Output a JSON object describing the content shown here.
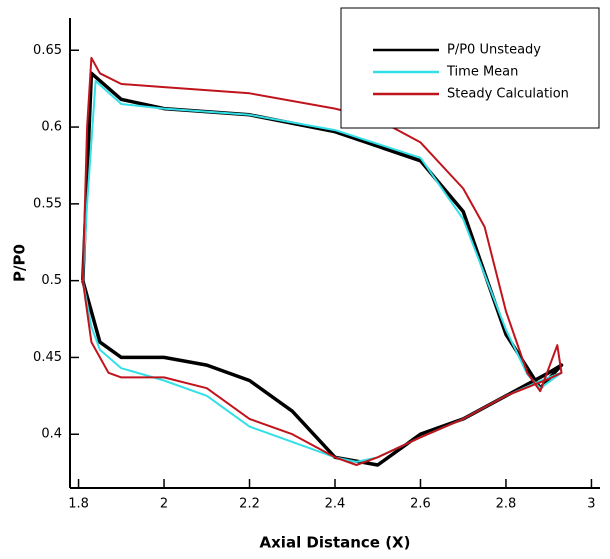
{
  "chart_data": {
    "type": "line",
    "xlabel": "Axial Distance (X)",
    "ylabel": "P/P0",
    "xlim": [
      1.78,
      3.02
    ],
    "ylim": [
      0.365,
      0.671
    ],
    "xticks": [
      1.8,
      2,
      2.2,
      2.4,
      2.6,
      2.8,
      3
    ],
    "yticks": [
      0.4,
      0.45,
      0.5,
      0.55,
      0.6,
      0.65
    ],
    "legend": "upper right",
    "series": [
      {
        "name": "P/P0 Unsteady",
        "color": "#000000",
        "x": [
          1.81,
          1.83,
          1.9,
          2.0,
          2.2,
          2.4,
          2.6,
          2.7,
          2.8,
          2.88,
          2.93,
          2.9,
          2.8,
          2.7,
          2.6,
          2.5,
          2.4,
          2.3,
          2.2,
          2.1,
          2.0,
          1.9,
          1.85,
          1.81
        ],
        "values": [
          0.5,
          0.635,
          0.618,
          0.612,
          0.608,
          0.597,
          0.578,
          0.545,
          0.465,
          0.43,
          0.445,
          0.44,
          0.425,
          0.41,
          0.4,
          0.38,
          0.385,
          0.415,
          0.435,
          0.445,
          0.45,
          0.45,
          0.46,
          0.5
        ]
      },
      {
        "name": "Time Mean",
        "color": "#33e0e8",
        "x": [
          1.81,
          1.82,
          1.84,
          1.9,
          2.0,
          2.2,
          2.4,
          2.6,
          2.7,
          2.8,
          2.85,
          2.88,
          2.93,
          2.9,
          2.8,
          2.7,
          2.6,
          2.5,
          2.45,
          2.4,
          2.3,
          2.2,
          2.1,
          2.0,
          1.9,
          1.85,
          1.83,
          1.81
        ],
        "values": [
          0.5,
          0.55,
          0.63,
          0.615,
          0.612,
          0.608,
          0.598,
          0.58,
          0.54,
          0.468,
          0.439,
          0.43,
          0.44,
          0.437,
          0.425,
          0.41,
          0.398,
          0.385,
          0.382,
          0.385,
          0.395,
          0.405,
          0.425,
          0.435,
          0.443,
          0.455,
          0.47,
          0.5
        ]
      },
      {
        "name": "Steady Calculation",
        "color": "#c0141c",
        "x": [
          1.81,
          1.82,
          1.83,
          1.85,
          1.9,
          2.0,
          2.2,
          2.4,
          2.5,
          2.6,
          2.7,
          2.75,
          2.8,
          2.85,
          2.88,
          2.92,
          2.93,
          2.9,
          2.8,
          2.7,
          2.6,
          2.5,
          2.45,
          2.4,
          2.3,
          2.2,
          2.1,
          2.0,
          1.9,
          1.87,
          1.83,
          1.81
        ],
        "values": [
          0.5,
          0.6,
          0.645,
          0.635,
          0.628,
          0.626,
          0.622,
          0.612,
          0.605,
          0.59,
          0.56,
          0.535,
          0.48,
          0.44,
          0.428,
          0.458,
          0.44,
          0.436,
          0.425,
          0.41,
          0.398,
          0.385,
          0.38,
          0.385,
          0.4,
          0.41,
          0.43,
          0.437,
          0.437,
          0.44,
          0.46,
          0.5
        ]
      }
    ]
  }
}
